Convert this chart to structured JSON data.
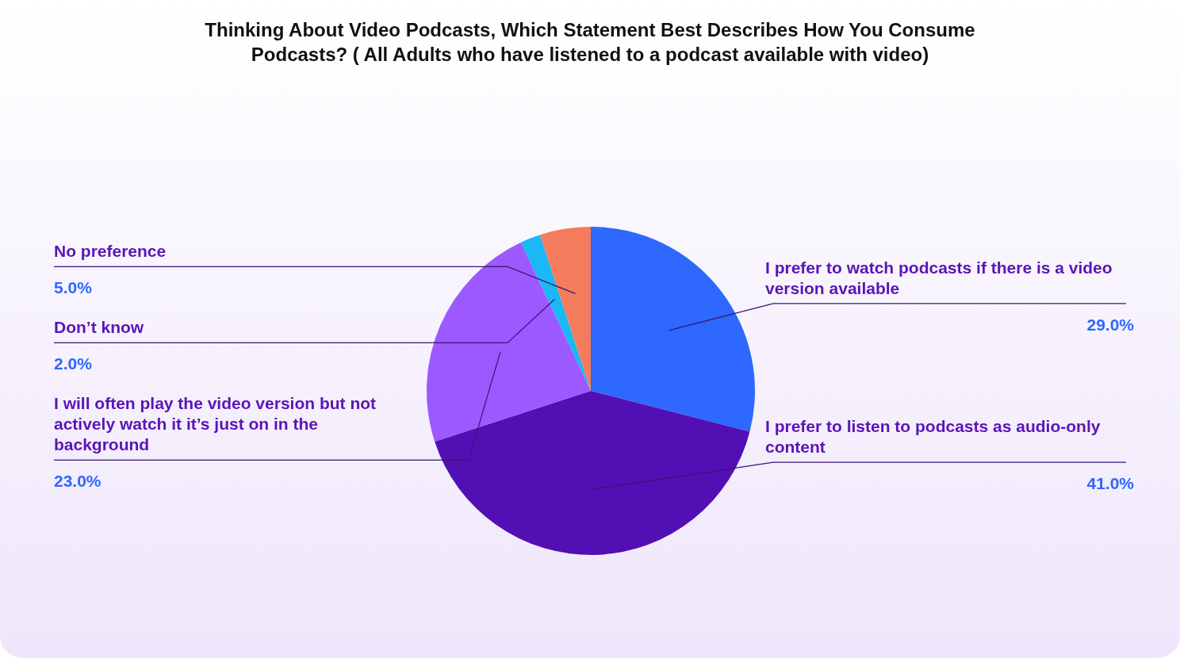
{
  "chart_data": {
    "type": "pie",
    "title": "Thinking About Video Podcasts, Which Statement Best Describes How You Consume Podcasts? ( All Adults who have listened to a podcast available with video)",
    "categories": [
      "I prefer to watch podcasts if there is a video version available",
      "I prefer to listen to podcasts as audio-only content",
      "I will often play the video version but not actively watch it it’s just on in the background",
      "Don’t know",
      "No preference"
    ],
    "values": [
      29,
      41,
      23,
      2,
      5
    ],
    "colors": [
      "#2e68ff",
      "#5210b4",
      "#9b59ff",
      "#1ab8f5",
      "#f47c5c"
    ],
    "value_labels": [
      "29.0%",
      "41.0%",
      "23.0%",
      "2.0%",
      "5.0%"
    ],
    "legend": false
  }
}
